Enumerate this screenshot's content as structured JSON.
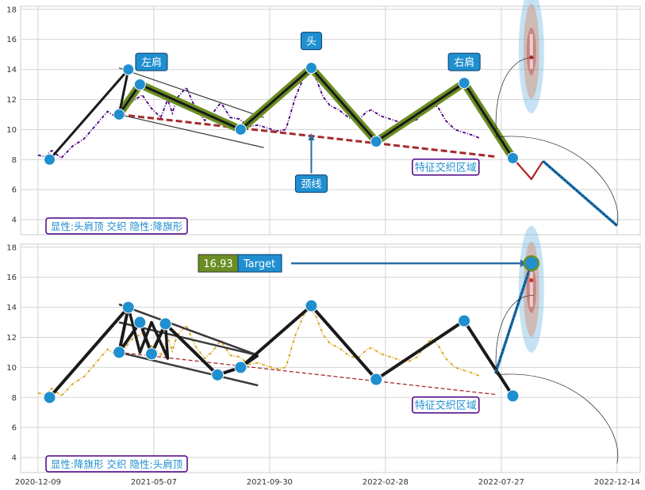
{
  "chart_data": [
    {
      "type": "line",
      "panel": "top",
      "ylim": [
        3,
        18.2
      ],
      "yticks": [
        4,
        6,
        8,
        10,
        12,
        14,
        16,
        18
      ],
      "grid": true,
      "price_color": "#4b0082",
      "price_series": [
        [
          -50,
          8.3
        ],
        [
          -44,
          8.2
        ],
        [
          -38,
          8.6
        ],
        [
          -30,
          8.1
        ],
        [
          -20,
          8.9
        ],
        [
          -10,
          9.4
        ],
        [
          0,
          10.3
        ],
        [
          10,
          11.2
        ],
        [
          20,
          10.7
        ],
        [
          30,
          11.8
        ],
        [
          40,
          12.3
        ],
        [
          48,
          11.4
        ],
        [
          56,
          10.8
        ],
        [
          62,
          12.0
        ],
        [
          66,
          11.1
        ],
        [
          70,
          12.1
        ],
        [
          78,
          12.8
        ],
        [
          86,
          11.4
        ],
        [
          94,
          10.6
        ],
        [
          100,
          11.0
        ],
        [
          108,
          11.8
        ],
        [
          116,
          10.8
        ],
        [
          124,
          10.7
        ],
        [
          132,
          10.2
        ],
        [
          140,
          10.3
        ],
        [
          148,
          10.1
        ],
        [
          156,
          9.9
        ],
        [
          164,
          10.0
        ],
        [
          172,
          12.1
        ],
        [
          180,
          13.6
        ],
        [
          184,
          14.0
        ],
        [
          190,
          13.4
        ],
        [
          196,
          12.2
        ],
        [
          202,
          11.6
        ],
        [
          210,
          11.3
        ],
        [
          218,
          10.8
        ],
        [
          226,
          10.6
        ],
        [
          234,
          11.2
        ],
        [
          238,
          11.3
        ],
        [
          246,
          10.9
        ],
        [
          254,
          10.7
        ],
        [
          262,
          10.5
        ],
        [
          270,
          10.4
        ],
        [
          278,
          10.7
        ],
        [
          284,
          11.5
        ],
        [
          290,
          11.9
        ],
        [
          296,
          11.4
        ],
        [
          302,
          10.6
        ],
        [
          310,
          10.0
        ],
        [
          318,
          9.8
        ],
        [
          326,
          9.6
        ],
        [
          332,
          9.4
        ]
      ],
      "main_line_color": "#1a1a1a",
      "main_line": [
        [
          -40,
          8.0
        ],
        [
          28,
          14.0
        ],
        [
          20,
          11.0
        ],
        [
          38,
          13.0
        ],
        [
          125,
          10.0
        ],
        [
          186,
          14.1
        ],
        [
          242,
          9.2
        ],
        [
          318,
          13.1
        ],
        [
          360,
          8.1
        ]
      ],
      "pattern_band_color": "#6b8e23",
      "pattern_band": [
        [
          20,
          11.0
        ],
        [
          38,
          13.0
        ],
        [
          125,
          10.0
        ],
        [
          186,
          14.1
        ],
        [
          242,
          9.2
        ],
        [
          318,
          13.1
        ],
        [
          360,
          8.1
        ]
      ],
      "pivot_points": [
        [
          -40,
          8.0
        ],
        [
          28,
          14.0
        ],
        [
          20,
          11.0
        ],
        [
          38,
          13.0
        ],
        [
          125,
          10.0
        ],
        [
          186,
          14.1
        ],
        [
          242,
          9.2
        ],
        [
          318,
          13.1
        ],
        [
          360,
          8.1
        ]
      ],
      "neckline_color": "#a52a2a",
      "neckline": [
        [
          20,
          11.0
        ],
        [
          345,
          8.2
        ]
      ],
      "channel_lines": [
        [
          [
            20,
            14.1
          ],
          [
            145,
            10.8
          ]
        ],
        [
          [
            20,
            11.0
          ],
          [
            145,
            8.8
          ]
        ]
      ],
      "forecast_color": "#ff8c00",
      "forecast": [
        [
          360,
          8.1
        ],
        [
          376,
          6.7
        ],
        [
          386,
          7.9
        ],
        [
          450,
          3.6
        ]
      ],
      "labels": [
        {
          "text": "左肩",
          "x": 48,
          "y": 14.5
        },
        {
          "text": "头",
          "x": 186,
          "y": 15.9
        },
        {
          "text": "右肩",
          "x": 318,
          "y": 14.5
        },
        {
          "text": "颈线",
          "x": 186,
          "y": 6.4
        }
      ],
      "region_label": "特征交织区域",
      "pattern_label": "显性:头肩顶 交织 隐性:降旗形"
    },
    {
      "type": "line",
      "panel": "bottom",
      "ylim": [
        3,
        18.2
      ],
      "yticks": [
        4,
        6,
        8,
        10,
        12,
        14,
        16,
        18
      ],
      "xticks": [
        "2020-12-09",
        "2021-05-07",
        "2021-09-30",
        "2022-02-28",
        "2022-07-27",
        "2022-12-14"
      ],
      "grid": true,
      "price_color": "#daa520",
      "price_series": [
        [
          -50,
          8.3
        ],
        [
          -44,
          8.2
        ],
        [
          -38,
          8.6
        ],
        [
          -30,
          8.1
        ],
        [
          -20,
          8.9
        ],
        [
          -10,
          9.4
        ],
        [
          0,
          10.3
        ],
        [
          10,
          11.2
        ],
        [
          20,
          10.7
        ],
        [
          30,
          11.8
        ],
        [
          40,
          12.3
        ],
        [
          48,
          11.4
        ],
        [
          56,
          10.8
        ],
        [
          62,
          12.0
        ],
        [
          66,
          11.1
        ],
        [
          70,
          12.1
        ],
        [
          78,
          12.8
        ],
        [
          86,
          11.4
        ],
        [
          94,
          10.6
        ],
        [
          100,
          11.0
        ],
        [
          108,
          11.8
        ],
        [
          116,
          10.8
        ],
        [
          124,
          10.7
        ],
        [
          132,
          10.2
        ],
        [
          140,
          10.3
        ],
        [
          148,
          10.1
        ],
        [
          156,
          9.9
        ],
        [
          164,
          10.0
        ],
        [
          172,
          12.1
        ],
        [
          180,
          13.6
        ],
        [
          184,
          14.0
        ],
        [
          190,
          13.4
        ],
        [
          196,
          12.2
        ],
        [
          202,
          11.6
        ],
        [
          210,
          11.3
        ],
        [
          218,
          10.8
        ],
        [
          226,
          10.6
        ],
        [
          234,
          11.2
        ],
        [
          238,
          11.3
        ],
        [
          246,
          10.9
        ],
        [
          254,
          10.7
        ],
        [
          262,
          10.5
        ],
        [
          270,
          10.4
        ],
        [
          278,
          10.7
        ],
        [
          284,
          11.5
        ],
        [
          290,
          11.9
        ],
        [
          296,
          11.4
        ],
        [
          302,
          10.6
        ],
        [
          310,
          10.0
        ],
        [
          318,
          9.8
        ],
        [
          326,
          9.6
        ],
        [
          332,
          9.4
        ]
      ],
      "main_line_color": "#1a1a1a",
      "main_line": [
        [
          -40,
          8.0
        ],
        [
          28,
          14.0
        ],
        [
          20,
          11.0
        ],
        [
          38,
          13.0
        ],
        [
          48,
          10.9
        ],
        [
          60,
          12.9
        ],
        [
          105,
          9.5
        ],
        [
          125,
          10.0
        ],
        [
          186,
          14.1
        ],
        [
          242,
          9.2
        ],
        [
          318,
          13.1
        ],
        [
          360,
          8.1
        ]
      ],
      "zigzag": [
        [
          28,
          14.0
        ],
        [
          38,
          11.0
        ],
        [
          48,
          13.0
        ],
        [
          62,
          10.6
        ],
        [
          60,
          12.9
        ],
        [
          105,
          9.5
        ],
        [
          125,
          10.0
        ],
        [
          140,
          10.8
        ]
      ],
      "pivot_points": [
        [
          -40,
          8.0
        ],
        [
          28,
          14.0
        ],
        [
          20,
          11.0
        ],
        [
          38,
          13.0
        ],
        [
          48,
          10.9
        ],
        [
          60,
          12.9
        ],
        [
          105,
          9.5
        ],
        [
          125,
          10.0
        ],
        [
          186,
          14.1
        ],
        [
          242,
          9.2
        ],
        [
          318,
          13.1
        ],
        [
          360,
          8.1
        ]
      ],
      "neckline_color": "#a52a2a",
      "neckline": [
        [
          20,
          11.0
        ],
        [
          345,
          8.2
        ]
      ],
      "channel_lines": [
        [
          [
            20,
            14.2
          ],
          [
            140,
            10.8
          ]
        ],
        [
          [
            20,
            11.0
          ],
          [
            140,
            8.8
          ]
        ],
        [
          [
            20,
            13.0
          ],
          [
            140,
            10.8
          ]
        ]
      ],
      "forecast_color": "#1f77b4",
      "forecast": [
        [
          345,
          9.6
        ],
        [
          376,
          16.93
        ]
      ],
      "target": {
        "value_text": "16.93",
        "label": "Target",
        "x": 376,
        "y": 16.93
      },
      "region_label": "特征交织区域",
      "pattern_label": "显性:降旗形 交织 隐性:头肩顶"
    }
  ]
}
